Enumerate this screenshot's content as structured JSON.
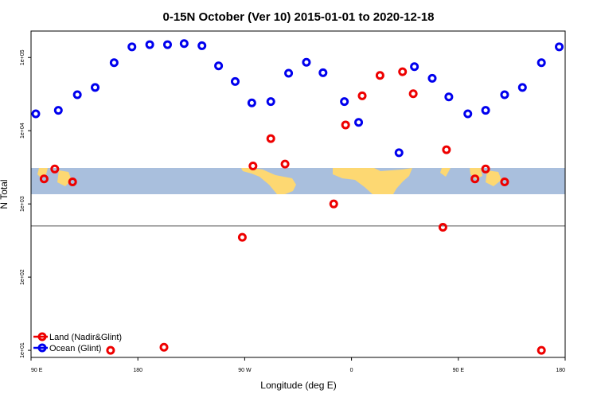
{
  "chart_data": {
    "type": "scatter",
    "title": "0-15N October (Ver 10)   2015-01-01 to 2020-12-18",
    "xlabel": "Longitude (deg E)",
    "ylabel": "N Total",
    "x_axis": {
      "range_lon_e": [
        90,
        450
      ],
      "ticks": [
        {
          "value": 90,
          "label": "90 E"
        },
        {
          "value": 180,
          "label": "180"
        },
        {
          "value": 270,
          "label": "90 W"
        },
        {
          "value": 360,
          "label": "0"
        },
        {
          "value": 450,
          "label": "90 E"
        },
        {
          "value": 540,
          "label": "180"
        }
      ],
      "range": [
        90,
        540
      ]
    },
    "y_axis": {
      "scale": "log",
      "range": [
        8,
        230000
      ],
      "ticks": [
        {
          "value": 10,
          "label": "1e+01"
        },
        {
          "value": 100,
          "label": "1e+02"
        },
        {
          "value": 1000,
          "label": "1e+03"
        },
        {
          "value": 10000,
          "label": "1e+04"
        },
        {
          "value": 100000,
          "label": "1e+05"
        }
      ]
    },
    "reference_line_y": 500,
    "map_band": {
      "ocean_color": "#a9bfdd",
      "land_color": "#fdd872"
    },
    "series": [
      {
        "name": "Land (Nadir&Glint)",
        "color": "#ee0000",
        "points": [
          {
            "x": 101,
            "y": 2200
          },
          {
            "x": 110,
            "y": 3000
          },
          {
            "x": 125,
            "y": 2000
          },
          {
            "x": 157,
            "y": 10
          },
          {
            "x": 202,
            "y": 11
          },
          {
            "x": 268,
            "y": 350
          },
          {
            "x": 277,
            "y": 3300
          },
          {
            "x": 292,
            "y": 7800
          },
          {
            "x": 304,
            "y": 3500
          },
          {
            "x": 345,
            "y": 1000
          },
          {
            "x": 355,
            "y": 12000
          },
          {
            "x": 369,
            "y": 30000
          },
          {
            "x": 384,
            "y": 57000
          },
          {
            "x": 403,
            "y": 64000
          },
          {
            "x": 412,
            "y": 32000
          },
          {
            "x": 437,
            "y": 480
          },
          {
            "x": 440,
            "y": 5500
          },
          {
            "x": 464,
            "y": 2200
          },
          {
            "x": 473,
            "y": 3000
          },
          {
            "x": 489,
            "y": 2000
          },
          {
            "x": 520,
            "y": 10
          }
        ]
      },
      {
        "name": "Ocean (Glint)",
        "color": "#0000ee",
        "points": [
          {
            "x": 94,
            "y": 17000
          },
          {
            "x": 113,
            "y": 19000
          },
          {
            "x": 129,
            "y": 31000
          },
          {
            "x": 144,
            "y": 39000
          },
          {
            "x": 160,
            "y": 85000
          },
          {
            "x": 175,
            "y": 140000
          },
          {
            "x": 190,
            "y": 150000
          },
          {
            "x": 205,
            "y": 150000
          },
          {
            "x": 219,
            "y": 155000
          },
          {
            "x": 234,
            "y": 145000
          },
          {
            "x": 248,
            "y": 77000
          },
          {
            "x": 262,
            "y": 47000
          },
          {
            "x": 276,
            "y": 24000
          },
          {
            "x": 292,
            "y": 25000
          },
          {
            "x": 307,
            "y": 61000
          },
          {
            "x": 322,
            "y": 86000
          },
          {
            "x": 336,
            "y": 62000
          },
          {
            "x": 354,
            "y": 25000
          },
          {
            "x": 366,
            "y": 13000
          },
          {
            "x": 400,
            "y": 5000
          },
          {
            "x": 413,
            "y": 75000
          },
          {
            "x": 428,
            "y": 52000
          },
          {
            "x": 442,
            "y": 29000
          },
          {
            "x": 458,
            "y": 17000
          },
          {
            "x": 473,
            "y": 19000
          },
          {
            "x": 489,
            "y": 31000
          },
          {
            "x": 504,
            "y": 39000
          },
          {
            "x": 520,
            "y": 85000
          },
          {
            "x": 535,
            "y": 140000
          }
        ]
      }
    ],
    "legend": {
      "placement": "bottom-left",
      "entries": [
        "Land (Nadir&Glint)",
        "Ocean (Glint)"
      ]
    },
    "grid": false
  }
}
